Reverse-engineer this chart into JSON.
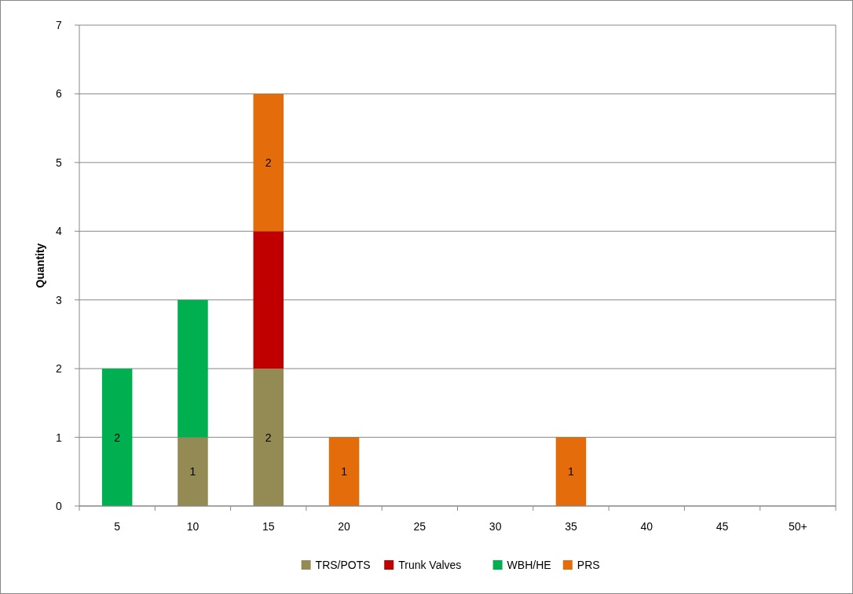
{
  "chart_data": {
    "type": "bar",
    "stacked": true,
    "ylabel": "Quantity",
    "categories": [
      "5",
      "10",
      "15",
      "20",
      "25",
      "30",
      "35",
      "40",
      "45",
      "50+"
    ],
    "series": [
      {
        "name": "TRS/POTS",
        "color": "#948a54",
        "values": [
          null,
          1,
          2,
          null,
          null,
          null,
          null,
          null,
          null,
          null
        ],
        "value_labels": [
          null,
          "1",
          "2",
          null,
          null,
          null,
          null,
          null,
          null,
          null
        ]
      },
      {
        "name": "Trunk Valves",
        "color": "#c00000",
        "values": [
          null,
          null,
          2,
          null,
          null,
          null,
          null,
          null,
          null,
          null
        ],
        "value_labels": [
          null,
          null,
          null,
          null,
          null,
          null,
          null,
          null,
          null,
          null
        ]
      },
      {
        "name": "WBH/HE",
        "color": "#00b050",
        "values": [
          2,
          2,
          null,
          null,
          null,
          null,
          null,
          null,
          null,
          null
        ],
        "value_labels": [
          "2",
          null,
          null,
          null,
          null,
          null,
          null,
          null,
          null,
          null
        ]
      },
      {
        "name": "PRS",
        "color": "#e46c0a",
        "values": [
          null,
          null,
          2,
          1,
          null,
          null,
          1,
          null,
          null,
          null
        ],
        "value_labels": [
          null,
          null,
          "2",
          "1",
          null,
          null,
          "1",
          null,
          null,
          null
        ]
      }
    ],
    "ylim": [
      0,
      7
    ],
    "yticks": [
      0,
      1,
      2,
      3,
      4,
      5,
      6,
      7
    ],
    "grid": "y",
    "legend": "bottom"
  }
}
